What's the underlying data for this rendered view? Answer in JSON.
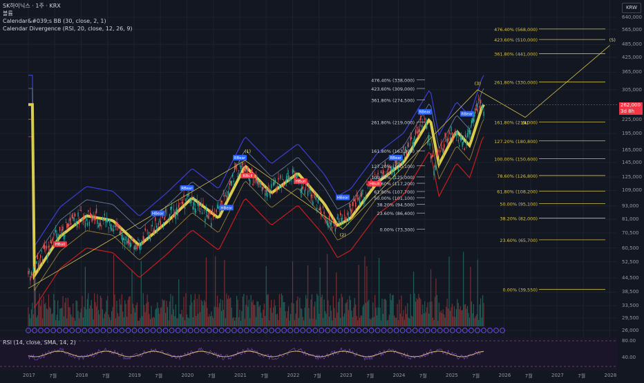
{
  "chart_title": "SK하이닉스 · 1주 · KRX",
  "indicators": [
    "볼륨",
    "Calendar&#039;s BB (30, close, 2, 1)",
    "Calendar Divergence (RSI, 20, close, 12, 26, 9)"
  ],
  "rsi_label": "RSI (14, close, SMA, 14, 2)",
  "currency": "KRW",
  "current_price": "262,000",
  "countdown": "3d 8h",
  "price_axis_labels": [
    "640,000",
    "565,000",
    "485,000",
    "425,000",
    "365,000",
    "305,000",
    "225,000",
    "195,000",
    "165,000",
    "145,000",
    "125,000",
    "109,000",
    "93,000",
    "81,000",
    "70,500",
    "60,500",
    "52,500",
    "44,500",
    "38,500",
    "33,500",
    "29,500",
    "26,000"
  ],
  "rsi_axis_labels": [
    "80.00",
    "40.00"
  ],
  "date_labels": [
    "2017",
    "7월",
    "2018",
    "7월",
    "2019",
    "7월",
    "2020",
    "7월",
    "2021",
    "7월",
    "2022",
    "7월",
    "2023",
    "7월",
    "2024",
    "7월",
    "2025",
    "7월",
    "2026",
    "7월",
    "2027",
    "7월",
    "2028"
  ],
  "fib_right": [
    "476.40% (568,000)",
    "423.60% (510,000)",
    "361.80% (441,000)",
    "261.80% (330,000)",
    "161.80% (219,000)",
    "127.20% (180,800)",
    "100.00% (150,600)",
    "78.60% (126,800)",
    "61.80% (108,200)",
    "50.00% (95,100)",
    "38.20% (82,000)",
    "23.60% (65,700)",
    "0.00% (39,550)"
  ],
  "fib_mid": [
    "476.40% (338,000)",
    "423.60% (309,000)",
    "361.80% (274,500)",
    "261.80% (219,000)",
    "161.80% (163,300)",
    "127.20% (140,100)",
    "100.00% (125,000)",
    "78.60% (117,200)",
    "61.80% (107,700)",
    "50.00% (101,100)",
    "38.20% (94,500)",
    "23.60% (86,400)",
    "0.00% (73,300)"
  ],
  "wave_labels": [
    "(1)",
    "(2)",
    "(3)",
    "(4)",
    "(5)"
  ],
  "signal_labels": [
    "RBear",
    "RBull",
    "HBear",
    "HBull"
  ],
  "colors": {
    "background": "#131722",
    "grid": "#1e222d",
    "fib": "#d4c24c",
    "bb_mid": "#d9cc4e",
    "upper": "#3c3fd6",
    "lower": "#c91d1d",
    "up": "#26a69a",
    "down": "#ef5350",
    "price_red": "#f23645",
    "rsi": "#e8c27a"
  },
  "chart_data": {
    "type": "candlestick",
    "title": "SK하이닉스 · 1주 · KRX",
    "x_range": [
      "2016-12",
      "2028-01"
    ],
    "y_scale": "log",
    "ylim": [
      24500,
      680000
    ],
    "series": [
      {
        "name": "price_close_approx",
        "x": [
          "2017-01",
          "2017-07",
          "2018-01",
          "2018-07",
          "2019-01",
          "2019-07",
          "2020-01",
          "2020-07",
          "2021-01",
          "2021-07",
          "2022-01",
          "2022-07",
          "2022-10",
          "2023-01",
          "2023-07",
          "2024-01",
          "2024-07",
          "2024-09",
          "2025-01",
          "2025-04",
          "2025-07"
        ],
        "values": [
          45000,
          68000,
          84000,
          80000,
          62000,
          78000,
          101000,
          82000,
          140000,
          106000,
          130000,
          95000,
          76000,
          82000,
          118000,
          145000,
          228000,
          142000,
          200000,
          172000,
          262000
        ]
      }
    ]
  }
}
